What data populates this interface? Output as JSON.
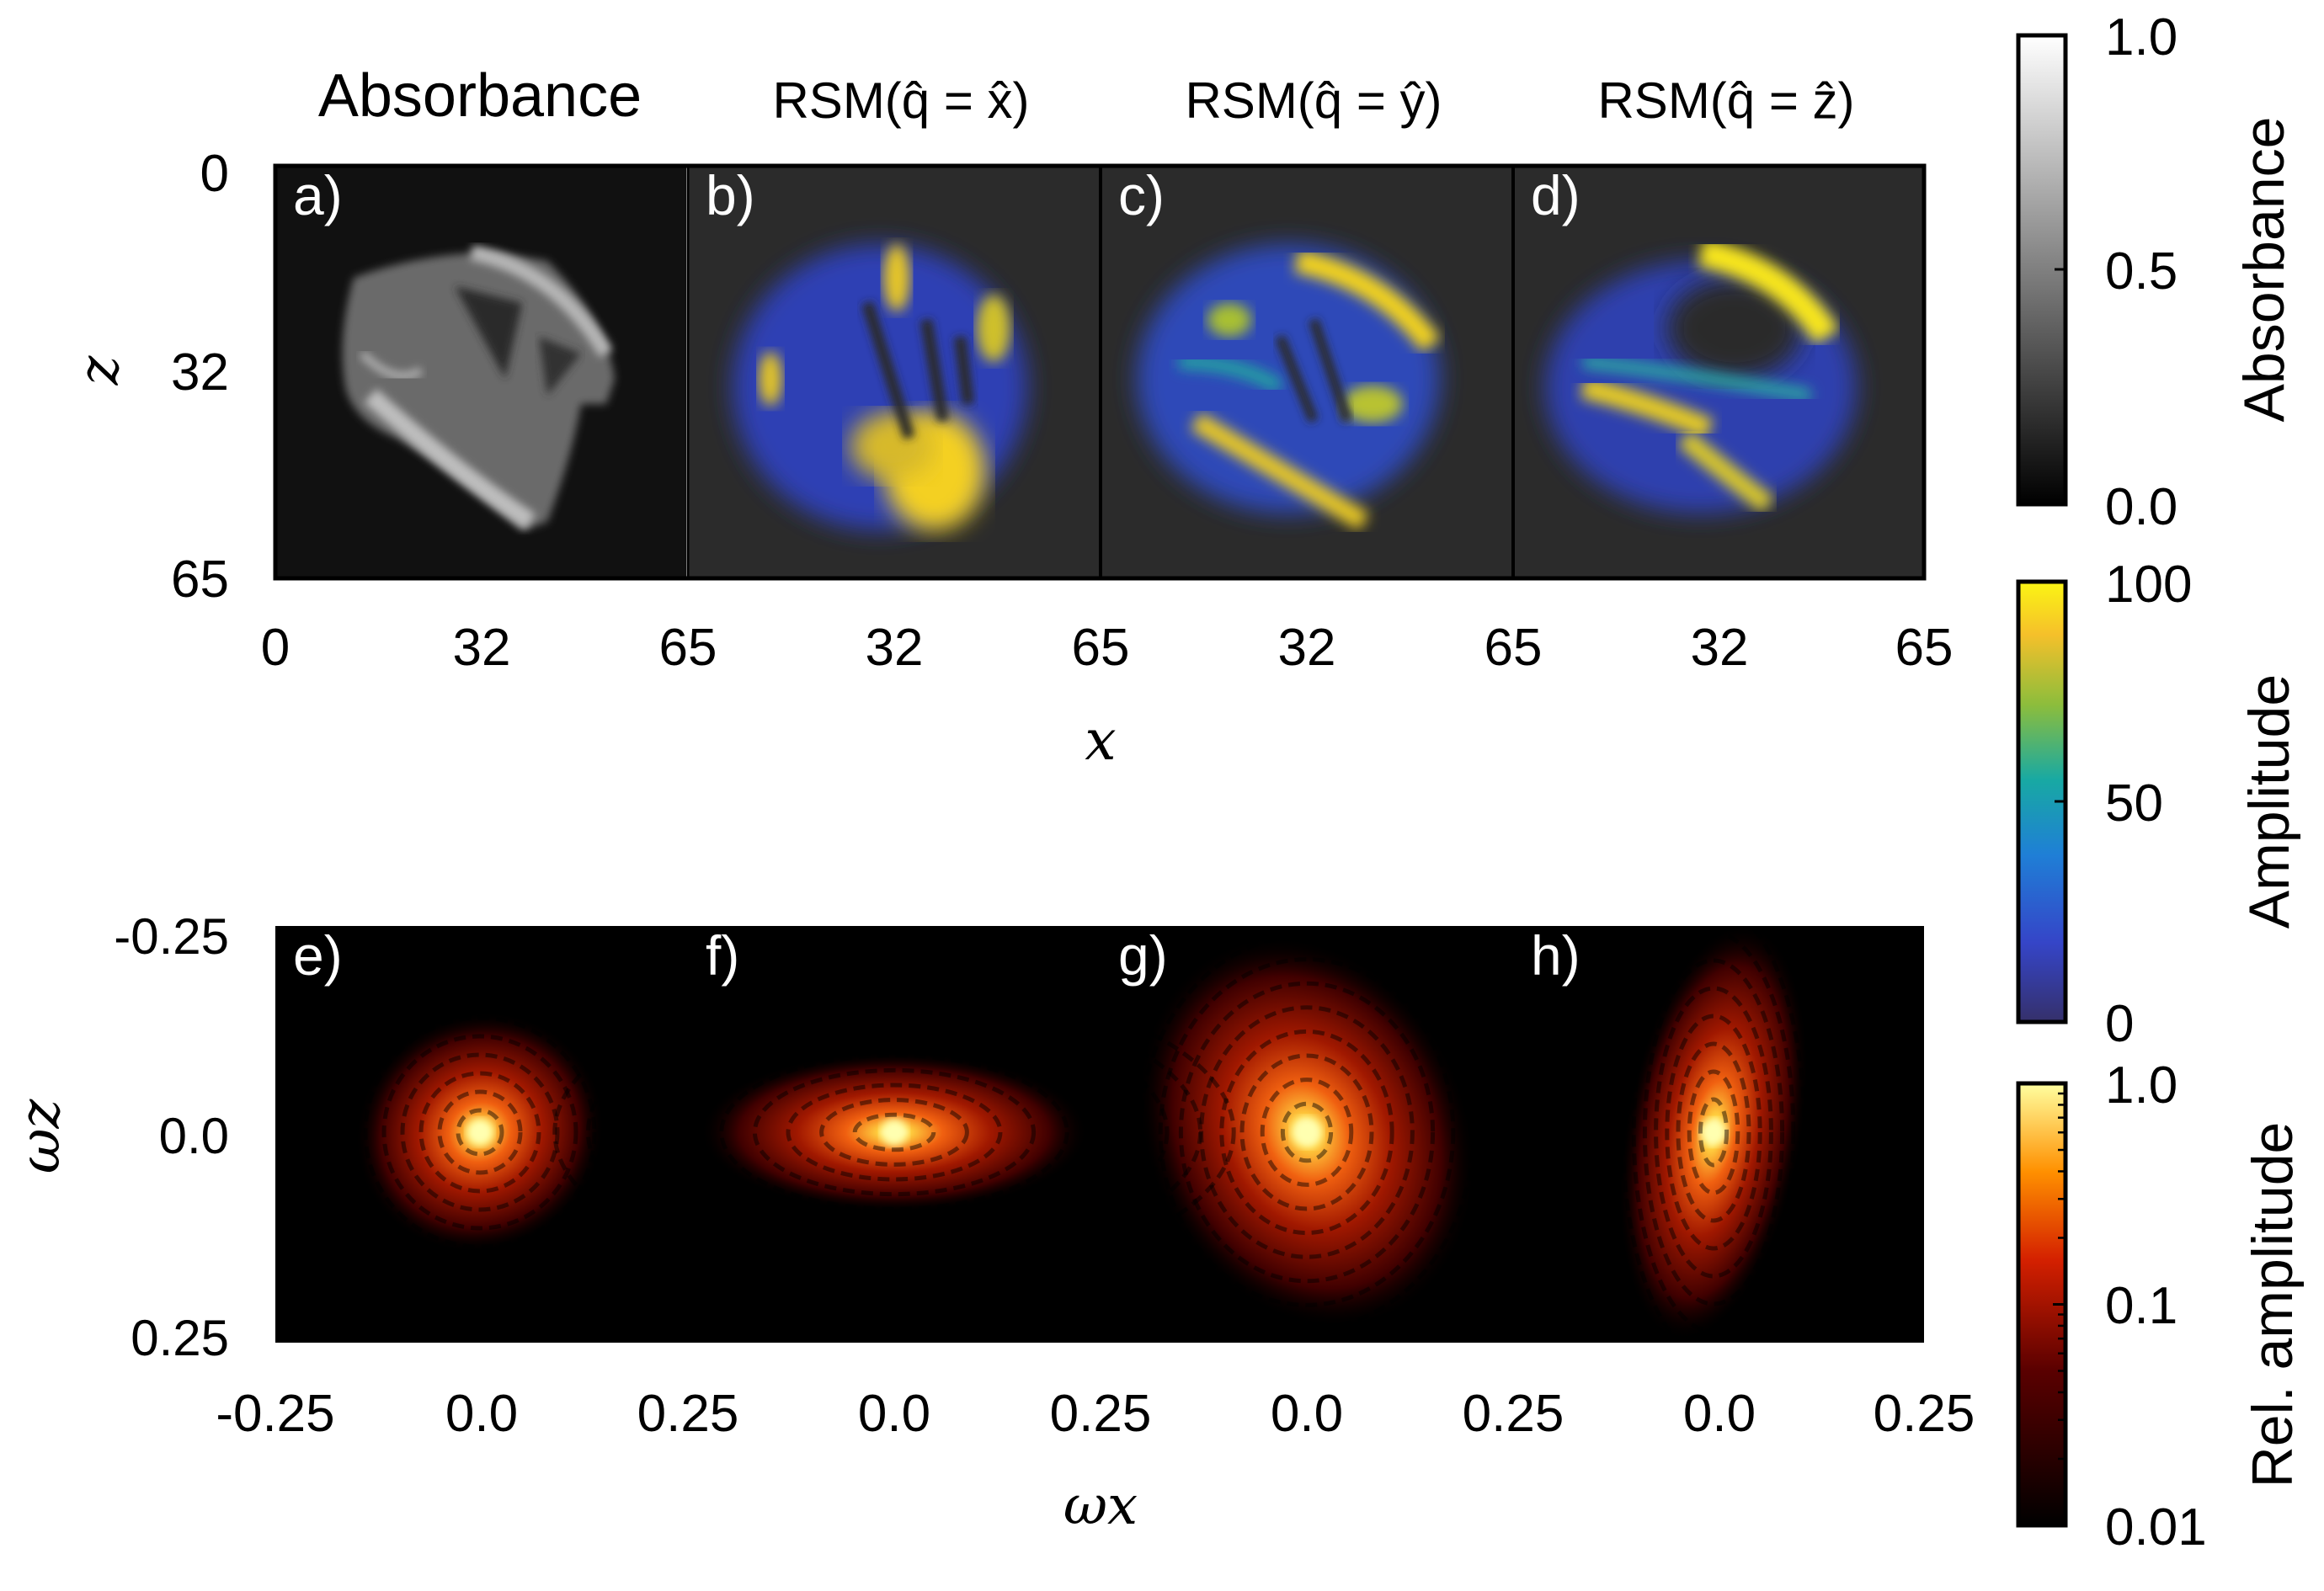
{
  "chart_data": {
    "type": "heatmap",
    "top_row": {
      "column_titles": [
        "Absorbance",
        "RSM(q̂ = x̂)",
        "RSM(q̂ = ŷ)",
        "RSM(q̂ = ẑ)"
      ],
      "panel_labels": [
        "a)",
        "b)",
        "c)",
        "d)"
      ],
      "xlabel": "x",
      "ylabel": "z",
      "x_ticks": [
        "0",
        "32",
        "65",
        "32",
        "65",
        "32",
        "65",
        "32",
        "65"
      ],
      "y_ticks": [
        "0",
        "32",
        "65"
      ],
      "xlim": [
        0,
        65
      ],
      "ylim": [
        0,
        65
      ]
    },
    "bottom_row": {
      "panel_labels": [
        "e)",
        "f)",
        "g)",
        "h)"
      ],
      "xlabel": "ωx",
      "ylabel": "ωz",
      "x_ticks": [
        "-0.25",
        "0.0",
        "0.25",
        "0.0",
        "0.25",
        "0.0",
        "0.25",
        "0.0",
        "0.25"
      ],
      "y_ticks": [
        "-0.25",
        "0.0",
        "0.25"
      ],
      "xlim": [
        -0.25,
        0.25
      ],
      "ylim": [
        -0.25,
        0.25
      ]
    },
    "colorbars": [
      {
        "label": "Absorbance",
        "ticks": [
          "1.0",
          "0.5",
          "0.0"
        ],
        "range": [
          0,
          1
        ],
        "colormap": "gray"
      },
      {
        "label": "Amplitude",
        "ticks": [
          "100",
          "50",
          "0"
        ],
        "range": [
          0,
          100
        ],
        "colormap": "parula"
      },
      {
        "label": "Rel. amplitude",
        "ticks": [
          "1.0",
          "0.1",
          "0.01"
        ],
        "range": [
          0.01,
          1
        ],
        "scale": "log",
        "colormap": "hot"
      }
    ],
    "colors": {
      "panel_bg_top_absorbance": "#111111",
      "panel_bg_top_rsm": "#2b2b2b",
      "panel_bg_bottom": "#000000",
      "parula_low": "#3a3f9c",
      "parula_mid": "#1aa6a0",
      "parula_high": "#fde725",
      "hot_peak": "#ffffa0"
    }
  }
}
